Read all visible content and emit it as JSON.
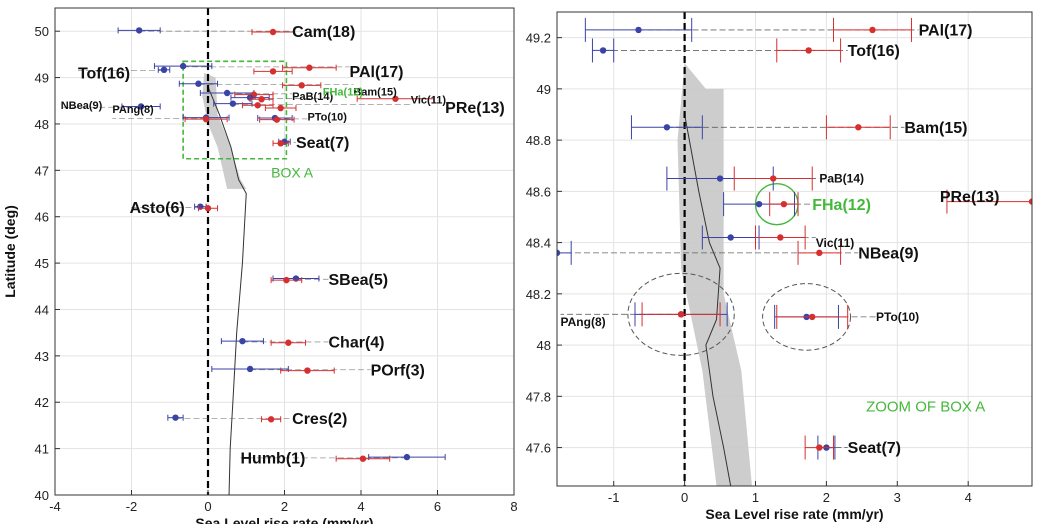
{
  "chart_data": [
    {
      "type": "scatter",
      "xlabel": "Sea Level rise rate  (mm/yr)",
      "ylabel": "Latitude (deg)",
      "xlim": [
        -4,
        8
      ],
      "ylim": [
        40,
        50.5
      ],
      "xticks": [
        -4,
        -2,
        0,
        2,
        4,
        6,
        8
      ],
      "yticks": [
        40,
        41,
        42,
        43,
        44,
        45,
        46,
        47,
        48,
        49,
        50
      ],
      "grid": true,
      "colors": {
        "red": "#d62f2f",
        "blue": "#3a43a6",
        "green": "#44b83b",
        "band": "#c8c8c8",
        "dash": "#555555"
      },
      "box_label": "BOX A",
      "box": {
        "x": [
          -0.65,
          2.05
        ],
        "y": [
          47.25,
          49.35
        ]
      },
      "stations": [
        {
          "label": "Cam(18)",
          "lat": 50.0,
          "red": [
            1.7,
            0.55
          ],
          "blue": [
            -1.8,
            0.55
          ],
          "label_x": 2.2,
          "label_dy": 0
        },
        {
          "label": "PAl(17)",
          "lat": 49.23,
          "red": [
            2.65,
            0.7
          ],
          "blue": [
            -0.65,
            0.75
          ],
          "label_x": 3.7,
          "label_dy": -0.1
        },
        {
          "label": "Tof(16)",
          "lat": 49.15,
          "red": [
            1.7,
            0.5
          ],
          "blue": [
            -1.15,
            0.15
          ],
          "label_x": -3.4,
          "label_dy": -0.05
        },
        {
          "label": "Bam(15)",
          "lat": 48.85,
          "red": [
            2.45,
            0.5
          ],
          "blue": [
            -0.25,
            0.5
          ],
          "label_x": 3.8,
          "label_dy": -0.15
        },
        {
          "label": "PaB(14)",
          "lat": 48.65,
          "red": [
            1.2,
            0.5
          ],
          "blue": [
            0.5,
            0.7
          ],
          "label_x": 2.2,
          "label_dy": -0.05
        },
        {
          "label": "PRe(13)",
          "lat": 48.56,
          "red": [
            4.9,
            1.0
          ],
          "blue": null,
          "label_x": 6.2,
          "label_dy": -0.2
        },
        {
          "label": "FHa(12)",
          "lat": 48.55,
          "red": [
            1.4,
            0.3
          ],
          "blue": [
            1.1,
            0.5
          ],
          "label_x": 3.0,
          "label_dy": 0.15,
          "label_color": "green"
        },
        {
          "label": "Vic(11)",
          "lat": 48.42,
          "red": [
            1.3,
            0.4
          ],
          "blue": [
            0.65,
            0.5
          ],
          "label_x": 5.3,
          "label_dy": 0.1
        },
        {
          "label": "NBea(9)",
          "lat": 48.36,
          "red": [
            1.9,
            0.4
          ],
          "blue": [
            -1.75,
            0.5
          ],
          "label_x": -3.85,
          "label_dy": 0.05
        },
        {
          "label": "PTo(10)",
          "lat": 48.11,
          "red": [
            1.8,
            0.45
          ],
          "blue": [
            1.75,
            0.45
          ],
          "label_x": 2.6,
          "label_dy": 0.05
        },
        {
          "label": "PAng(8)",
          "lat": 48.12,
          "red": [
            -0.05,
            0.55
          ],
          "blue": [
            -0.05,
            0.6
          ],
          "label_x": -2.5,
          "label_dy": 0.2
        },
        {
          "label": "Seat(7)",
          "lat": 47.6,
          "red": [
            1.9,
            0.2
          ],
          "blue": [
            2.0,
            0.15
          ],
          "label_x": 2.3,
          "label_dy": 0
        },
        {
          "label": "Asto(6)",
          "lat": 46.2,
          "red": [
            0.0,
            0.25
          ],
          "blue": [
            -0.2,
            0.15
          ],
          "label_x": -2.05,
          "label_dy": 0
        },
        {
          "label": "SBea(5)",
          "lat": 44.65,
          "red": [
            2.05,
            0.4
          ],
          "blue": [
            2.3,
            0.6
          ],
          "label_x": 3.15,
          "label_dy": 0
        },
        {
          "label": "Char(4)",
          "lat": 43.3,
          "red": [
            2.1,
            0.45
          ],
          "blue": [
            0.9,
            0.55
          ],
          "label_x": 3.15,
          "label_dy": 0
        },
        {
          "label": "POrf(3)",
          "lat": 42.7,
          "red": [
            2.6,
            0.7
          ],
          "blue": [
            1.1,
            1.0
          ],
          "label_x": 4.25,
          "label_dy": 0
        },
        {
          "label": "Cres(2)",
          "lat": 41.65,
          "red": [
            1.65,
            0.25
          ],
          "blue": [
            -0.85,
            0.2
          ],
          "label_x": 2.2,
          "label_dy": 0
        },
        {
          "label": "Humb(1)",
          "lat": 40.8,
          "red": [
            4.05,
            0.7
          ],
          "blue": [
            5.2,
            1.0
          ],
          "label_x": 0.85,
          "label_dy": 0
        }
      ],
      "band": [
        [
          0.25,
          48.2
        ],
        [
          0.35,
          48.0
        ],
        [
          0.55,
          47.6
        ],
        [
          0.85,
          46.8
        ],
        [
          1.0,
          46.6
        ],
        [
          0.5,
          46.6
        ],
        [
          0.25,
          47.5
        ],
        [
          0.0,
          48.0
        ],
        [
          -0.15,
          48.6
        ],
        [
          -0.1,
          49.1
        ],
        [
          0.2,
          49.0
        ]
      ],
      "curve": [
        [
          0.0,
          48.8
        ],
        [
          0.3,
          48.2
        ],
        [
          0.6,
          47.5
        ],
        [
          0.8,
          46.8
        ],
        [
          1.0,
          46.5
        ],
        [
          0.9,
          45.0
        ],
        [
          0.75,
          43.5
        ],
        [
          0.65,
          42.0
        ],
        [
          0.58,
          41.0
        ],
        [
          0.55,
          40.0
        ]
      ]
    },
    {
      "type": "scatter",
      "xlabel": "Sea Level rise rate  (mm/yr)",
      "ylabel": "",
      "xlim": [
        -1.8,
        4.9
      ],
      "ylim": [
        47.45,
        49.3
      ],
      "xticks": [
        -1,
        0,
        1,
        2,
        3,
        4
      ],
      "yticks": [
        47.6,
        47.8,
        48,
        48.2,
        48.4,
        48.6,
        48.8,
        49,
        49.2
      ],
      "grid": true,
      "annotation": "ZOOM OF BOX A",
      "stations": [
        {
          "label": "PAl(17)",
          "lat": 49.23,
          "red": [
            2.65,
            0.55
          ],
          "blue": [
            -0.65,
            0.75
          ],
          "label_x": 3.3,
          "label_dy": 0
        },
        {
          "label": "Tof(16)",
          "lat": 49.15,
          "red": [
            1.75,
            0.45
          ],
          "blue": [
            -1.15,
            0.15
          ],
          "label_x": 2.3,
          "label_dy": 0
        },
        {
          "label": "Bam(15)",
          "lat": 48.85,
          "red": [
            2.45,
            0.45
          ],
          "blue": [
            -0.25,
            0.5
          ],
          "label_x": 3.1,
          "label_dy": 0
        },
        {
          "label": "PaB(14)",
          "lat": 48.65,
          "red": [
            1.25,
            0.55
          ],
          "blue": [
            0.5,
            0.75
          ],
          "label_x": 1.9,
          "label_dy": 0
        },
        {
          "label": "PRe(13)",
          "lat": 48.56,
          "red": [
            4.9,
            1.2
          ],
          "blue": null,
          "label_x": 3.6,
          "label_dy": 0.02
        },
        {
          "label": "FHa(12)",
          "lat": 48.55,
          "red": [
            1.4,
            0.2
          ],
          "blue": [
            1.05,
            0.5
          ],
          "label_x": 1.8,
          "label_dy": 0,
          "label_color": "green"
        },
        {
          "label": "Vic(11)",
          "lat": 48.42,
          "red": [
            1.35,
            0.35
          ],
          "blue": [
            0.65,
            0.4
          ],
          "label_x": 1.85,
          "label_dy": -0.02
        },
        {
          "label": "NBea(9)",
          "lat": 48.36,
          "red": [
            1.9,
            0.3
          ],
          "blue": [
            -1.8,
            0.2
          ],
          "label_x": 2.45,
          "label_dy": 0
        },
        {
          "label": "PTo(10)",
          "lat": 48.11,
          "red": [
            1.8,
            0.5
          ],
          "blue": [
            1.72,
            0.45
          ],
          "label_x": 2.7,
          "label_dy": 0
        },
        {
          "label": "PAng(8)",
          "lat": 48.12,
          "red": [
            -0.05,
            0.55
          ],
          "blue": [
            -0.05,
            0.65
          ],
          "label_x": -1.75,
          "label_dy": -0.03
        },
        {
          "label": "Seat(7)",
          "lat": 47.6,
          "red": [
            1.9,
            0.2
          ],
          "blue": [
            2.0,
            0.12
          ],
          "label_x": 2.3,
          "label_dy": 0
        }
      ],
      "band": [
        [
          0.0,
          49.1
        ],
        [
          0.3,
          49.0
        ],
        [
          0.55,
          49.0
        ],
        [
          0.55,
          48.2
        ],
        [
          0.8,
          47.9
        ],
        [
          0.95,
          47.45
        ],
        [
          0.45,
          47.45
        ],
        [
          0.25,
          47.9
        ],
        [
          -0.05,
          48.3
        ],
        [
          -0.1,
          48.8
        ]
      ],
      "curve": [
        [
          0.0,
          48.9
        ],
        [
          0.2,
          48.6
        ],
        [
          0.35,
          48.4
        ],
        [
          0.5,
          48.3
        ],
        [
          0.45,
          48.1
        ],
        [
          0.3,
          48.0
        ],
        [
          0.4,
          47.8
        ],
        [
          0.55,
          47.6
        ],
        [
          0.65,
          47.45
        ]
      ],
      "ellipses": [
        {
          "cx": -0.05,
          "cy": 48.12,
          "rx": 0.75,
          "ry": 0.16
        },
        {
          "cx": 1.72,
          "cy": 48.11,
          "rx": 0.62,
          "ry": 0.13
        }
      ],
      "green_ellipse": {
        "cx": 1.3,
        "cy": 48.55,
        "rx": 0.3,
        "ry": 0.08
      }
    }
  ]
}
